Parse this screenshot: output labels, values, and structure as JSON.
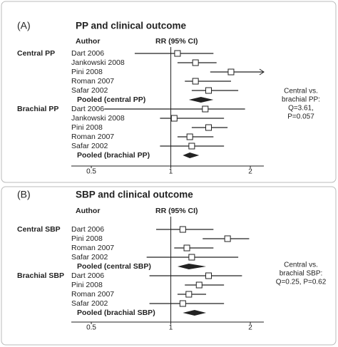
{
  "chart_data": [
    {
      "type": "forest",
      "panel_label": "(A)",
      "title": "PP and clinical outcome",
      "author_header": "Author",
      "estimate_header": "RR (95% CI)",
      "x_scale": "log",
      "xlim": [
        0.42,
        2.25
      ],
      "xticks": [
        0.5,
        1,
        2
      ],
      "groups": [
        {
          "name": "Central PP",
          "studies": [
            {
              "label": "Dart 2006",
              "rr": 1.06,
              "lo": 0.73,
              "hi": 1.45
            },
            {
              "label": "Jankowski 2008",
              "rr": 1.24,
              "lo": 1.06,
              "hi": 1.49
            },
            {
              "label": "Pini 2008",
              "rr": 1.69,
              "lo": 1.41,
              "hi": 2.3
            },
            {
              "label": "Roman 2007",
              "rr": 1.24,
              "lo": 1.13,
              "hi": 1.69
            },
            {
              "label": "Safar 2002",
              "rr": 1.39,
              "lo": 1.2,
              "hi": 1.8
            }
          ],
          "pooled": {
            "label": "Pooled (central PP)",
            "rr": 1.3,
            "lo": 1.17,
            "hi": 1.45
          }
        },
        {
          "name": "Brachial PP",
          "studies": [
            {
              "label": "Dart 2006",
              "rr": 1.35,
              "lo": 0.56,
              "hi": 1.91
            },
            {
              "label": "Jankowski 2008",
              "rr": 1.03,
              "lo": 0.91,
              "hi": 1.59
            },
            {
              "label": "Pini 2008",
              "rr": 1.39,
              "lo": 1.2,
              "hi": 1.64
            },
            {
              "label": "Roman 2007",
              "rr": 1.18,
              "lo": 1.06,
              "hi": 1.45
            },
            {
              "label": "Safar 2002",
              "rr": 1.2,
              "lo": 0.91,
              "hi": 1.59
            }
          ],
          "pooled": {
            "label": "Pooled (brachial PP)",
            "rr": 1.18,
            "lo": 1.11,
            "hi": 1.28
          }
        }
      ],
      "annotation": [
        "Central vs.",
        "brachial PP:",
        "Q=3.61,",
        "P=0.057"
      ]
    },
    {
      "type": "forest",
      "panel_label": "(B)",
      "title": "SBP and clinical outcome",
      "author_header": "Author",
      "estimate_header": "RR (95% CI)",
      "x_scale": "log",
      "xlim": [
        0.42,
        2.25
      ],
      "xticks": [
        0.5,
        1,
        2
      ],
      "groups": [
        {
          "name": "Central SBP",
          "studies": [
            {
              "label": "Dart 2006",
              "rr": 1.11,
              "lo": 0.88,
              "hi": 1.45
            },
            {
              "label": "Pini 2008",
              "rr": 1.64,
              "lo": 1.32,
              "hi": 1.98
            },
            {
              "label": "Roman 2007",
              "rr": 1.15,
              "lo": 1.03,
              "hi": 1.45
            },
            {
              "label": "Safar 2002",
              "rr": 1.2,
              "lo": 0.81,
              "hi": 1.8
            }
          ],
          "pooled": {
            "label": "Pooled (central SBP)",
            "rr": 1.17,
            "lo": 1.06,
            "hi": 1.36
          }
        },
        {
          "name": "Brachial SBP",
          "studies": [
            {
              "label": "Dart 2006",
              "rr": 1.39,
              "lo": 0.83,
              "hi": 1.86
            },
            {
              "label": "Pini 2008",
              "rr": 1.28,
              "lo": 1.13,
              "hi": 1.59
            },
            {
              "label": "Roman 2007",
              "rr": 1.17,
              "lo": 1.06,
              "hi": 1.36
            },
            {
              "label": "Safar 2002",
              "rr": 1.11,
              "lo": 0.83,
              "hi": 1.59
            }
          ],
          "pooled": {
            "label": "Pooled (brachial SBP)",
            "rr": 1.23,
            "lo": 1.11,
            "hi": 1.36
          }
        }
      ],
      "annotation": [
        "Central vs.",
        "brachial SBP:",
        "Q=0.25, P=0.62"
      ]
    }
  ]
}
